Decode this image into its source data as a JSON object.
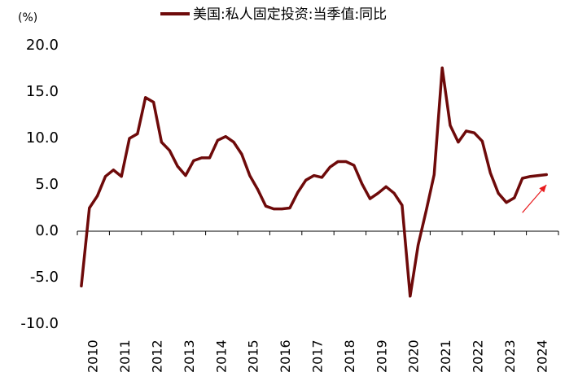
{
  "chart_data": {
    "type": "line",
    "unit_label": "(%)",
    "xlabel": "",
    "ylabel": "",
    "ylim": [
      -10,
      20
    ],
    "yticks": [
      20.0,
      15.0,
      10.0,
      5.0,
      0.0,
      -5.0,
      -10.0
    ],
    "ytick_labels": [
      "20.0",
      "15.0",
      "10.0",
      "5.0",
      "0.0",
      "-5.0",
      "-10.0"
    ],
    "x_tick_labels": [
      "2010",
      "2011",
      "2012",
      "2013",
      "2014",
      "2015",
      "2016",
      "2017",
      "2018",
      "2019",
      "2020",
      "2021",
      "2022",
      "2023",
      "2024"
    ],
    "grid": false,
    "legend_position": "top-center",
    "series": [
      {
        "name": "美国:私人固定投资:当季值:同比",
        "color": "#6e0a0a",
        "x": [
          "2010Q1",
          "2010Q2",
          "2010Q3",
          "2010Q4",
          "2011Q1",
          "2011Q2",
          "2011Q3",
          "2011Q4",
          "2012Q1",
          "2012Q2",
          "2012Q3",
          "2012Q4",
          "2013Q1",
          "2013Q2",
          "2013Q3",
          "2013Q4",
          "2014Q1",
          "2014Q2",
          "2014Q3",
          "2014Q4",
          "2015Q1",
          "2015Q2",
          "2015Q3",
          "2015Q4",
          "2016Q1",
          "2016Q2",
          "2016Q3",
          "2016Q4",
          "2017Q1",
          "2017Q2",
          "2017Q3",
          "2017Q4",
          "2018Q1",
          "2018Q2",
          "2018Q3",
          "2018Q4",
          "2019Q1",
          "2019Q2",
          "2019Q3",
          "2019Q4",
          "2020Q1",
          "2020Q2",
          "2020Q3",
          "2020Q4",
          "2021Q1",
          "2021Q2",
          "2021Q3",
          "2021Q4",
          "2022Q1",
          "2022Q2",
          "2022Q3",
          "2022Q4",
          "2023Q1",
          "2023Q2",
          "2023Q3",
          "2023Q4",
          "2024Q1",
          "2024Q2",
          "2024Q3"
        ],
        "values": [
          -5.9,
          2.5,
          3.8,
          5.9,
          6.6,
          5.9,
          10.0,
          10.5,
          14.4,
          13.9,
          9.6,
          8.7,
          7.0,
          6.0,
          7.6,
          7.9,
          7.9,
          9.8,
          10.2,
          9.6,
          8.3,
          6.0,
          4.5,
          2.7,
          2.4,
          2.4,
          2.5,
          4.2,
          5.5,
          6.0,
          5.8,
          6.9,
          7.5,
          7.5,
          7.1,
          5.1,
          3.5,
          4.1,
          4.8,
          4.1,
          2.8,
          -7.0,
          -1.5,
          2.2,
          6.1,
          17.6,
          11.4,
          9.6,
          10.8,
          10.6,
          9.7,
          6.3,
          4.1,
          3.1,
          3.6,
          5.7,
          5.9,
          6.0,
          6.1
        ]
      }
    ],
    "annotation": {
      "type": "arrow",
      "color": "#e8191c",
      "from": [
        "2023Q4",
        2.0
      ],
      "to": [
        "2024Q3",
        5.0
      ]
    }
  }
}
